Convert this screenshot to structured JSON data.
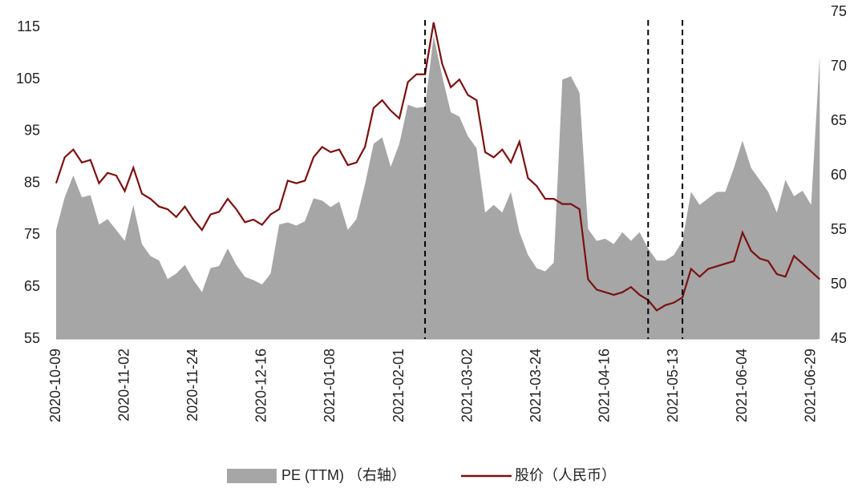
{
  "chart_data": {
    "type": "combo",
    "categories": [
      "2020-10-09",
      null,
      null,
      null,
      null,
      null,
      null,
      null,
      "2020-11-02",
      null,
      null,
      null,
      null,
      null,
      null,
      null,
      "2020-11-24",
      null,
      null,
      null,
      null,
      null,
      null,
      null,
      "2020-12-16",
      null,
      null,
      null,
      null,
      null,
      null,
      null,
      "2021-01-08",
      null,
      null,
      null,
      null,
      null,
      null,
      null,
      "2021-02-01",
      null,
      null,
      null,
      null,
      null,
      null,
      null,
      "2021-03-02",
      null,
      null,
      null,
      null,
      null,
      null,
      null,
      "2021-03-24",
      null,
      null,
      null,
      null,
      null,
      null,
      null,
      "2021-04-16",
      null,
      null,
      null,
      null,
      null,
      null,
      null,
      "2021-05-13",
      null,
      null,
      null,
      null,
      null,
      null,
      null,
      "2021-06-04",
      null,
      null,
      null,
      null,
      null,
      null,
      null,
      "2021-06-29",
      null
    ],
    "series": [
      {
        "name": "PE (TTM) （右轴）",
        "type": "area",
        "axis": "y2",
        "color": "#a6a6a6",
        "values": [
          55,
          58,
          60,
          58,
          58.2,
          55.5,
          56,
          55,
          54,
          57.3,
          53.7,
          52.6,
          52.2,
          50.5,
          51,
          51.8,
          50.4,
          49.3,
          51.5,
          51.7,
          53.3,
          51.8,
          50.7,
          50.4,
          50,
          51,
          55.5,
          55.7,
          55.4,
          55.8,
          57.9,
          57.7,
          57.1,
          57.6,
          55,
          56,
          59.2,
          62.9,
          63.5,
          60.8,
          62.9,
          66.5,
          66.2,
          66.3,
          72.8,
          69.1,
          65.8,
          65.4,
          63.6,
          62.5,
          56.6,
          57.3,
          56.6,
          58.5,
          54.8,
          52.7,
          51.5,
          51.2,
          52,
          68.8,
          69.1,
          67.6,
          55.1,
          54,
          54.2,
          53.7,
          54.8,
          54,
          54.8,
          53.3,
          52.2,
          52.2,
          52.7,
          54,
          58.5,
          57.3,
          57.9,
          58.5,
          58.5,
          60.7,
          63.2,
          60.7,
          59.6,
          58.5,
          56.6,
          59.6,
          58.1,
          58.6,
          57.3,
          71
        ]
      },
      {
        "name": "股价（人民币）",
        "type": "line",
        "color": "#7b1111",
        "values": [
          85,
          90,
          91.5,
          89,
          89.5,
          85,
          87,
          86.5,
          83.5,
          88,
          83,
          82,
          80.5,
          80,
          78.5,
          80.5,
          78,
          76,
          79,
          79.5,
          82,
          80,
          77.5,
          78,
          77,
          79,
          80,
          85.5,
          85,
          85.5,
          90,
          92,
          91,
          91.5,
          88.5,
          89,
          92,
          99.5,
          101,
          99,
          97.5,
          104.5,
          106,
          106,
          116,
          108,
          103.5,
          105,
          102,
          101,
          91,
          90,
          91.5,
          89,
          93,
          86,
          84.5,
          82,
          82,
          81,
          81,
          80,
          66.5,
          64.5,
          64,
          63.5,
          64,
          65,
          63.5,
          62.5,
          60.5,
          61.5,
          62,
          63,
          68.5,
          67,
          68.5,
          69,
          69.5,
          70,
          75.5,
          72,
          70.5,
          70,
          67.5,
          67,
          71,
          69.5,
          68,
          66.5
        ]
      }
    ],
    "ylim": [
      55,
      118
    ],
    "yticks": [
      55,
      65,
      75,
      85,
      95,
      105,
      115
    ],
    "y2lim": [
      45,
      75
    ],
    "y2ticks": [
      45,
      50,
      55,
      60,
      65,
      70,
      75
    ],
    "vlines": [
      43,
      69,
      73
    ],
    "legend": "bottom"
  }
}
